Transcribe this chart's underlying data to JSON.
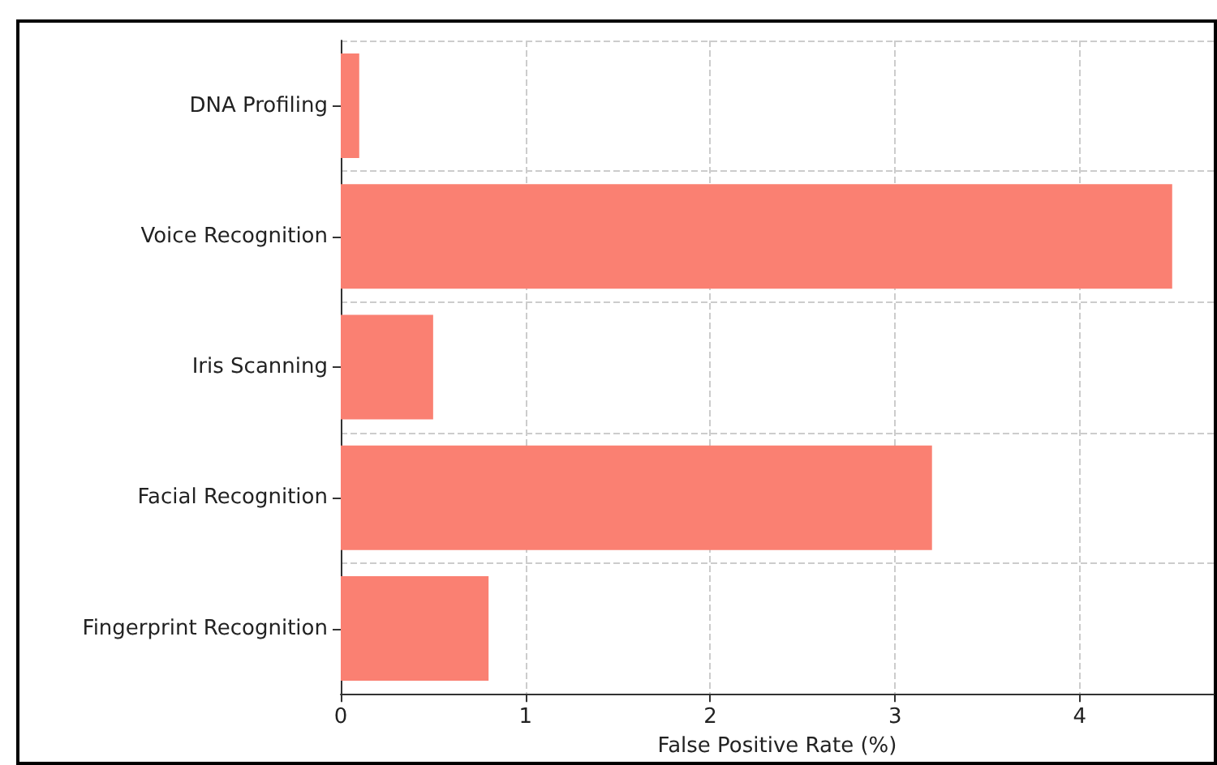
{
  "chart_data": {
    "type": "bar",
    "orientation": "horizontal",
    "categories": [
      "DNA Profiling",
      "Voice Recognition",
      "Iris Scanning",
      "Facial Recognition",
      "Fingerprint Recognition"
    ],
    "values": [
      0.1,
      4.5,
      0.5,
      3.2,
      0.8
    ],
    "color": "#fa8072",
    "xlabel": "False Positive Rate (%)",
    "xlim": [
      0,
      4.725
    ],
    "xticks": [
      0,
      1,
      2,
      3,
      4
    ],
    "grid": true
  }
}
